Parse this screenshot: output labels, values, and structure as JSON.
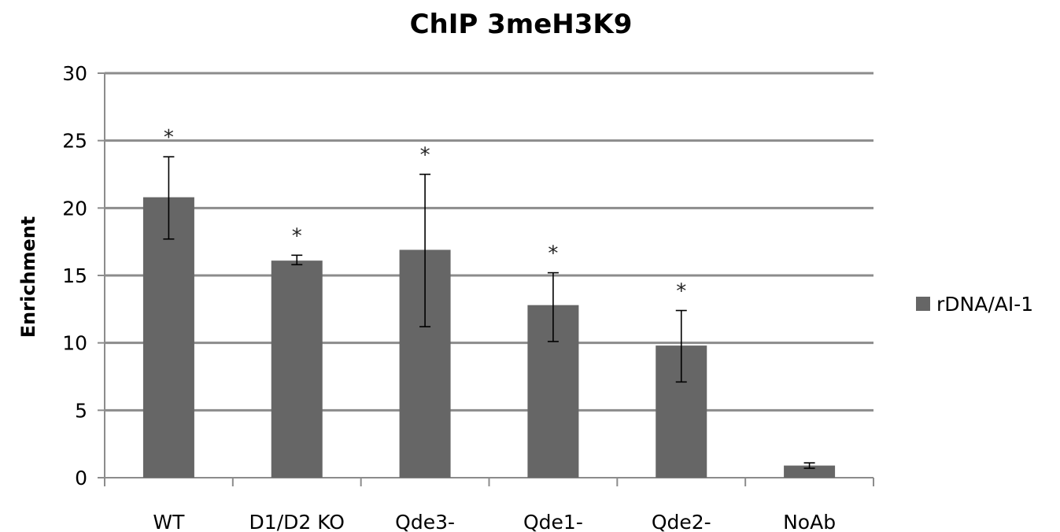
{
  "chart_data": {
    "type": "bar",
    "title": "ChIP 3meH3K9",
    "xlabel": "",
    "ylabel": "Enrichment",
    "ylim": [
      0,
      30
    ],
    "yticks": [
      0,
      5,
      10,
      15,
      20,
      25,
      30
    ],
    "grid": true,
    "legend_position": "right",
    "categories": [
      "WT",
      "D1/D2 KO",
      "Qde3-",
      "Qde1-",
      "Qde2-",
      "NoAb"
    ],
    "series": [
      {
        "name": "rDNA/AI-1",
        "color": "#666666",
        "values": [
          20.8,
          16.1,
          16.9,
          12.8,
          9.8,
          0.9
        ],
        "error_low": [
          17.7,
          15.8,
          11.2,
          10.1,
          7.1,
          0.7
        ],
        "error_high": [
          23.8,
          16.5,
          22.5,
          15.2,
          12.4,
          1.1
        ],
        "annotations": [
          "*",
          "*",
          "*",
          "*",
          "*",
          ""
        ]
      }
    ]
  }
}
